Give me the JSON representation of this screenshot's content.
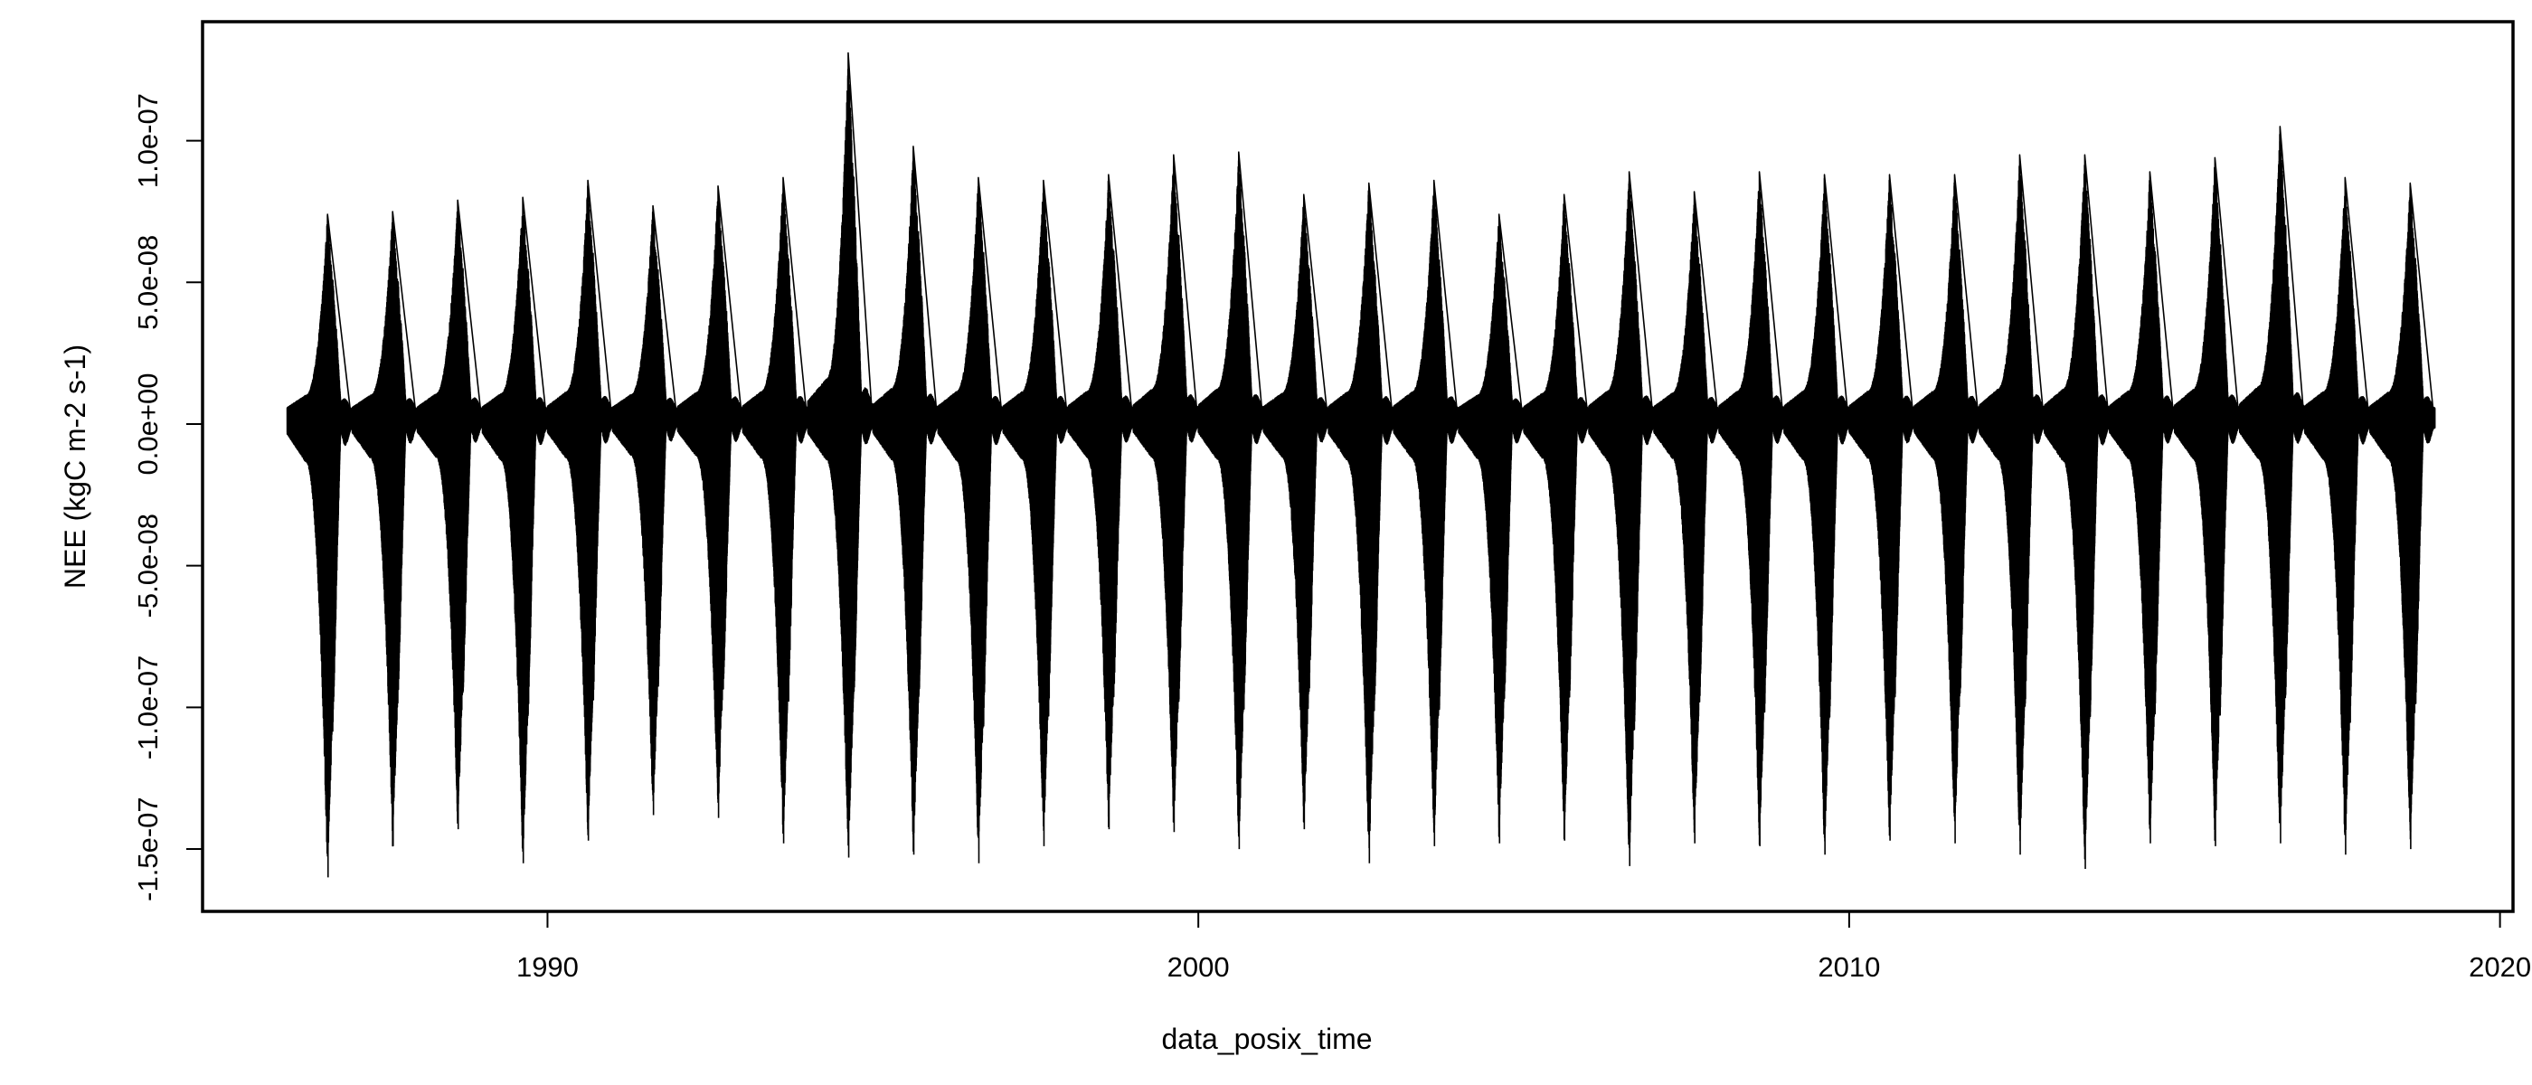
{
  "chart_data": {
    "type": "line",
    "title": "",
    "xlabel": "data_posix_time",
    "ylabel": "NEE (kgC m-2 s-1)",
    "xlim": [
      1984.7,
      2020.2
    ],
    "ylim": [
      -1.72e-07,
      1.42e-07
    ],
    "x_ticks": [
      {
        "value": 1990,
        "label": "1990"
      },
      {
        "value": 2000,
        "label": "2000"
      },
      {
        "value": 2010,
        "label": "2010"
      },
      {
        "value": 2020,
        "label": "2020"
      }
    ],
    "y_ticks": [
      {
        "value": -1.5e-07,
        "label": "-1.5e-07"
      },
      {
        "value": -1e-07,
        "label": "-1.0e-07"
      },
      {
        "value": -5e-08,
        "label": "-5.0e-08"
      },
      {
        "value": 0,
        "label": "0.0e+00"
      },
      {
        "value": 5e-08,
        "label": "5.0e-08"
      },
      {
        "value": 1e-07,
        "label": "1.0e-07"
      }
    ],
    "grid": false,
    "legend": "none",
    "series": [
      {
        "color": "#000000",
        "x_range": [
          1986.0,
          2019.0
        ],
        "baseline": 3e-09,
        "seasonal_cycles": [
          {
            "year": 1986,
            "max": 7.4e-08,
            "min": -1.6e-07
          },
          {
            "year": 1987,
            "max": 7.5e-08,
            "min": -1.49e-07
          },
          {
            "year": 1988,
            "max": 7.9e-08,
            "min": -1.43e-07
          },
          {
            "year": 1989,
            "max": 8e-08,
            "min": -1.55e-07
          },
          {
            "year": 1990,
            "max": 8.6e-08,
            "min": -1.47e-07
          },
          {
            "year": 1991,
            "max": 7.7e-08,
            "min": -1.38e-07
          },
          {
            "year": 1992,
            "max": 8.4e-08,
            "min": -1.39e-07
          },
          {
            "year": 1993,
            "max": 8.7e-08,
            "min": -1.48e-07
          },
          {
            "year": 1994,
            "max": 1.31e-07,
            "min": -1.53e-07
          },
          {
            "year": 1995,
            "max": 9.8e-08,
            "min": -1.52e-07
          },
          {
            "year": 1996,
            "max": 8.7e-08,
            "min": -1.55e-07
          },
          {
            "year": 1997,
            "max": 8.6e-08,
            "min": -1.49e-07
          },
          {
            "year": 1998,
            "max": 8.8e-08,
            "min": -1.43e-07
          },
          {
            "year": 1999,
            "max": 9.5e-08,
            "min": -1.44e-07
          },
          {
            "year": 2000,
            "max": 9.6e-08,
            "min": -1.5e-07
          },
          {
            "year": 2001,
            "max": 8.1e-08,
            "min": -1.43e-07
          },
          {
            "year": 2002,
            "max": 8.5e-08,
            "min": -1.55e-07
          },
          {
            "year": 2003,
            "max": 8.6e-08,
            "min": -1.49e-07
          },
          {
            "year": 2004,
            "max": 7.4e-08,
            "min": -1.48e-07
          },
          {
            "year": 2005,
            "max": 8.1e-08,
            "min": -1.47e-07
          },
          {
            "year": 2006,
            "max": 8.9e-08,
            "min": -1.56e-07
          },
          {
            "year": 2007,
            "max": 8.2e-08,
            "min": -1.48e-07
          },
          {
            "year": 2008,
            "max": 8.9e-08,
            "min": -1.49e-07
          },
          {
            "year": 2009,
            "max": 8.8e-08,
            "min": -1.52e-07
          },
          {
            "year": 2010,
            "max": 8.8e-08,
            "min": -1.47e-07
          },
          {
            "year": 2011,
            "max": 8.8e-08,
            "min": -1.48e-07
          },
          {
            "year": 2012,
            "max": 9.5e-08,
            "min": -1.52e-07
          },
          {
            "year": 2013,
            "max": 9.5e-08,
            "min": -1.57e-07
          },
          {
            "year": 2014,
            "max": 8.9e-08,
            "min": -1.48e-07
          },
          {
            "year": 2015,
            "max": 9.4e-08,
            "min": -1.49e-07
          },
          {
            "year": 2016,
            "max": 1.05e-07,
            "min": -1.48e-07
          },
          {
            "year": 2017,
            "max": 8.7e-08,
            "min": -1.52e-07
          },
          {
            "year": 2018,
            "max": 8.5e-08,
            "min": -1.5e-07
          }
        ]
      }
    ]
  }
}
